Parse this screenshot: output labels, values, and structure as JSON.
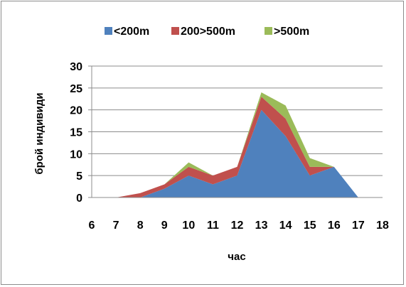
{
  "chart_data": {
    "type": "area",
    "stacked": true,
    "x": [
      6,
      7,
      8,
      9,
      10,
      11,
      12,
      13,
      14,
      15,
      16,
      17,
      18
    ],
    "series": [
      {
        "name": "<200m",
        "color": "#4f81bd",
        "values": [
          0,
          0,
          0,
          2,
          5,
          3,
          5,
          20,
          14,
          5,
          7,
          0,
          0
        ]
      },
      {
        "name": "200>500m",
        "color": "#c0504d",
        "values": [
          0,
          0,
          1,
          1,
          2,
          2,
          2,
          3,
          4,
          2,
          0,
          0,
          0
        ]
      },
      {
        "name": ">500m",
        "color": "#9bbb59",
        "values": [
          0,
          0,
          0,
          0,
          1,
          0,
          0,
          1,
          3,
          2,
          0,
          0,
          0
        ]
      }
    ],
    "xlabel": "час",
    "ylabel": "брой индивиди",
    "xlim": [
      6,
      18
    ],
    "ylim": [
      0,
      30
    ],
    "yticks": [
      0,
      5,
      10,
      15,
      20,
      25,
      30
    ],
    "xticks": [
      6,
      7,
      8,
      9,
      10,
      11,
      12,
      13,
      14,
      15,
      16,
      17,
      18
    ],
    "grid": true,
    "legend_position": "top"
  }
}
